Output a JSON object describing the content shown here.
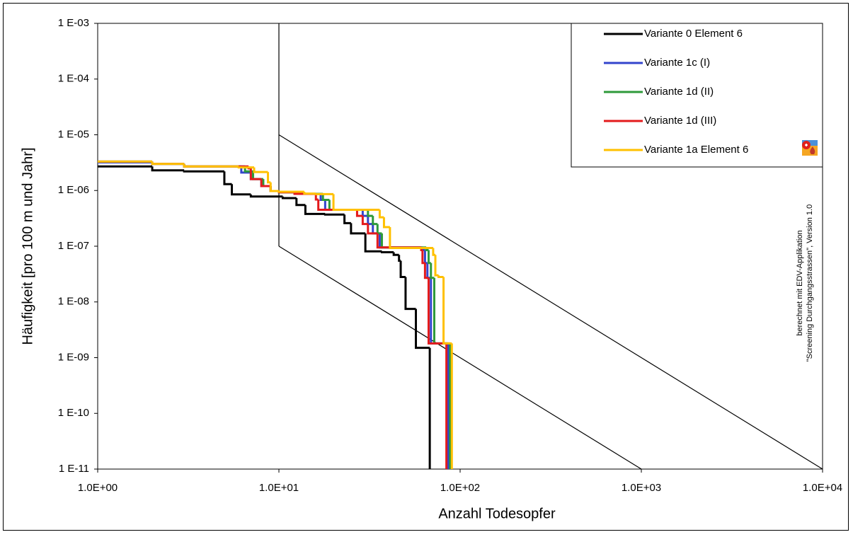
{
  "chart_data": {
    "type": "line",
    "step": "post",
    "xlabel": "Anzahl Todesopfer",
    "ylabel": "Häufigkeit [pro 100 m und Jahr]",
    "xscale": "log",
    "yscale": "log",
    "xlim": [
      1,
      10000
    ],
    "ylim": [
      1e-11,
      0.001
    ],
    "xticks": [
      {
        "value": 1,
        "label": "1.0E+00"
      },
      {
        "value": 10,
        "label": "1.0E+01"
      },
      {
        "value": 100,
        "label": "1.0E+02"
      },
      {
        "value": 1000,
        "label": "1.0E+03"
      },
      {
        "value": 10000,
        "label": "1.0E+04"
      }
    ],
    "yticks": [
      {
        "value": 1e-11,
        "label": "1 E-11"
      },
      {
        "value": 1e-10,
        "label": "1 E-10"
      },
      {
        "value": 1e-09,
        "label": "1 E-09"
      },
      {
        "value": 1e-08,
        "label": "1 E-08"
      },
      {
        "value": 1e-07,
        "label": "1 E-07"
      },
      {
        "value": 1e-06,
        "label": "1 E-06"
      },
      {
        "value": 1e-05,
        "label": "1 E-05"
      },
      {
        "value": 0.0001,
        "label": "1 E-04"
      },
      {
        "value": 0.001,
        "label": "1 E-03"
      }
    ],
    "legend": "upper right",
    "annotation": [
      "berechnet mit EDV-Applikation",
      "\"Screening Durchgangsstrassen\", Version 1.0"
    ],
    "reference_lines": [
      {
        "color": "#000000",
        "x": [
          10,
          10
        ],
        "y": [
          0.001,
          1e-07
        ]
      },
      {
        "color": "#000000",
        "x": [
          10,
          10000
        ],
        "y": [
          1e-05,
          1e-11
        ]
      },
      {
        "color": "#000000",
        "x": [
          10,
          1000
        ],
        "y": [
          1e-07,
          1e-11
        ]
      }
    ],
    "series": [
      {
        "name": "Variante 0  Element 6",
        "color": "#000000",
        "x": [
          1,
          2,
          3,
          5,
          5.5,
          7,
          10.5,
          12.5,
          14,
          18,
          23,
          25,
          30,
          37,
          43,
          46,
          47,
          50,
          57,
          68
        ],
        "values": [
          2.7e-06,
          2.3e-06,
          2.2e-06,
          1.3e-06,
          8.5e-07,
          7.8e-07,
          7.3e-07,
          5.5e-07,
          3.8e-07,
          3.7e-07,
          2.6e-07,
          1.7e-07,
          8.1e-08,
          7.8e-08,
          7e-08,
          5.5e-08,
          2.8e-08,
          7.5e-09,
          1.5e-09,
          1e-11
        ]
      },
      {
        "name": "Variante 1c (I)",
        "color": "#3344cc",
        "x": [
          1,
          2,
          3,
          6.2,
          7,
          8,
          9,
          10,
          12.2,
          17,
          18,
          29,
          31,
          33,
          36,
          62,
          64,
          66,
          69,
          86
        ],
        "values": [
          3.2e-06,
          3e-06,
          2.7e-06,
          2.1e-06,
          1.6e-06,
          1.2e-06,
          9.8e-07,
          9.3e-07,
          8.7e-07,
          6.8e-07,
          4.5e-07,
          3.5e-07,
          2.5e-07,
          1.7e-07,
          9.5e-08,
          8.5e-08,
          5e-08,
          2.7e-08,
          1.8e-09,
          1e-11
        ]
      },
      {
        "name": "Variante 1d (II)",
        "color": "#2e9a3a",
        "x": [
          1,
          2,
          3,
          6.5,
          7.2,
          8.2,
          9,
          10,
          12.5,
          17.5,
          19,
          31,
          33,
          35,
          37,
          65,
          67,
          69,
          72,
          88
        ],
        "values": [
          3.3e-06,
          3e-06,
          2.7e-06,
          2.2e-06,
          1.6e-06,
          1.2e-06,
          9.8e-07,
          9.3e-07,
          8.7e-07,
          6.8e-07,
          4.5e-07,
          3.5e-07,
          2.5e-07,
          1.7e-07,
          9.5e-08,
          8.5e-08,
          5e-08,
          2.7e-08,
          1.8e-09,
          1e-11
        ]
      },
      {
        "name": "Variante 1d (III)",
        "color": "#e31a1c",
        "x": [
          1,
          2,
          3,
          6.8,
          7,
          8,
          9,
          10,
          12.2,
          16,
          16.5,
          27,
          29,
          31,
          35,
          61,
          62,
          64,
          67,
          84
        ],
        "values": [
          3.3e-06,
          3e-06,
          2.7e-06,
          2.5e-06,
          1.6e-06,
          1.2e-06,
          9.8e-07,
          9.3e-07,
          8.7e-07,
          6.9e-07,
          4.5e-07,
          3.5e-07,
          2.5e-07,
          1.7e-07,
          9.5e-08,
          8.5e-08,
          5e-08,
          2.7e-08,
          1.8e-09,
          1e-11
        ]
      },
      {
        "name": "Variante 1a Element 6",
        "color": "#ffc000",
        "x": [
          1,
          2,
          3,
          6,
          7.3,
          8.7,
          9,
          10,
          13.8,
          16,
          20,
          36,
          38,
          41,
          71,
          73,
          76,
          81,
          90
        ],
        "values": [
          3.3e-06,
          3e-06,
          2.7e-06,
          2.6e-06,
          2.15e-06,
          1.4e-06,
          9.8e-07,
          9.5e-07,
          8.8e-07,
          8.6e-07,
          4.5e-07,
          3.3e-07,
          2.2e-07,
          9.3e-08,
          7e-08,
          3e-08,
          2.8e-08,
          1.8e-09,
          1e-11
        ]
      }
    ]
  }
}
